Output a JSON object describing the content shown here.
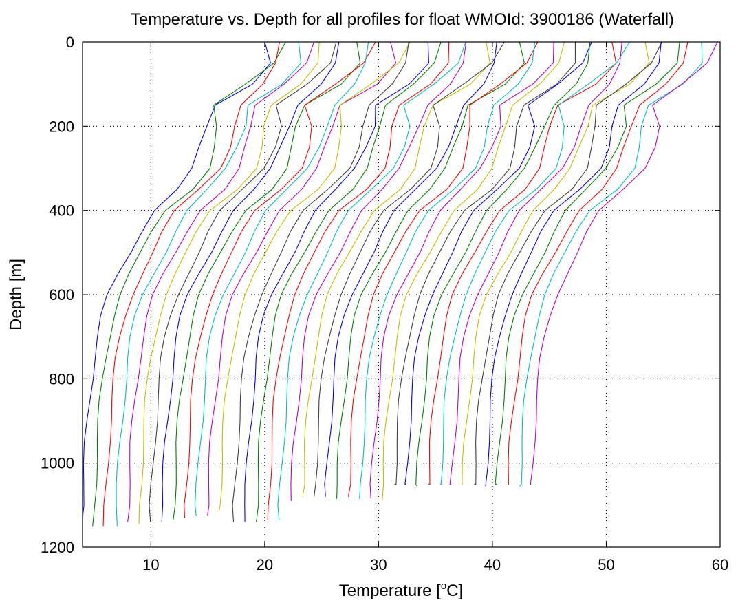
{
  "chart_data": {
    "type": "line",
    "title": "Temperature vs. Depth for all profiles for float WMOId: 3900186 (Waterfall)",
    "xlabel": {
      "prefix": "Temperature [",
      "superscript": "o",
      "suffix": "C]"
    },
    "ylabel": "Depth [m]",
    "xlim": [
      4,
      60
    ],
    "ylim": [
      0,
      1200
    ],
    "y_reversed": true,
    "grid": true,
    "xticks": [
      10,
      20,
      30,
      40,
      50,
      60
    ],
    "yticks": [
      0,
      200,
      400,
      600,
      800,
      1000,
      1200
    ],
    "color_cycle": [
      "#0000ff",
      "#008000",
      "#ff0000",
      "#00bfbf",
      "#bf00bf",
      "#bfbf00",
      "#404040"
    ],
    "depths": [
      0,
      50,
      100,
      150,
      200,
      250,
      300,
      350,
      400,
      450,
      500,
      550,
      600,
      650,
      700,
      750,
      800,
      850,
      900,
      950,
      1000,
      1050,
      1100,
      1150
    ],
    "series_profile": [
      {
        "shift": 0,
        "values": [
          20.0,
          19.7,
          18.0,
          15.4,
          15.1,
          14.6,
          13.9,
          12.3,
          10.2,
          9.1,
          8.2,
          7.2,
          6.3,
          5.7,
          5.3,
          5.0,
          4.8,
          4.6,
          4.45,
          4.3,
          4.2,
          4.1,
          4.0,
          3.95
        ]
      }
    ],
    "series": [
      {
        "offset": 0.0,
        "max_depth": 1145
      },
      {
        "offset": 1.0,
        "max_depth": 1150
      },
      {
        "offset": 2.0,
        "max_depth": 1150
      },
      {
        "offset": 3.0,
        "max_depth": 1150
      },
      {
        "offset": 4.0,
        "max_depth": 1140
      },
      {
        "offset": 5.0,
        "max_depth": 1145
      },
      {
        "offset": 6.0,
        "max_depth": 1140
      },
      {
        "offset": 7.0,
        "max_depth": 1140
      },
      {
        "offset": 8.0,
        "max_depth": 1135
      },
      {
        "offset": 9.0,
        "max_depth": 1130
      },
      {
        "offset": 10.0,
        "max_depth": 1125
      },
      {
        "offset": 11.0,
        "max_depth": 1125
      },
      {
        "offset": 12.0,
        "max_depth": 1115
      },
      {
        "offset": 13.3,
        "max_depth": 1140
      },
      {
        "offset": 14.3,
        "max_depth": 1140
      },
      {
        "offset": 15.3,
        "max_depth": 1140
      },
      {
        "offset": 16.3,
        "max_depth": 1135
      },
      {
        "offset": 17.3,
        "max_depth": 1135
      },
      {
        "offset": 18.3,
        "max_depth": 1090
      },
      {
        "offset": 19.3,
        "max_depth": 1080
      },
      {
        "offset": 20.3,
        "max_depth": 1080
      },
      {
        "offset": 21.3,
        "max_depth": 1080
      },
      {
        "offset": 22.3,
        "max_depth": 1085
      },
      {
        "offset": 23.3,
        "max_depth": 1080
      },
      {
        "offset": 24.3,
        "max_depth": 1085
      },
      {
        "offset": 25.3,
        "max_depth": 1085
      },
      {
        "offset": 26.3,
        "max_depth": 1090
      },
      {
        "offset": 27.3,
        "max_depth": 1050
      },
      {
        "offset": 28.3,
        "max_depth": 1050
      },
      {
        "offset": 29.3,
        "max_depth": 1055
      },
      {
        "offset": 30.3,
        "max_depth": 1050
      },
      {
        "offset": 31.3,
        "max_depth": 1050
      },
      {
        "offset": 32.3,
        "max_depth": 1050
      },
      {
        "offset": 33.3,
        "max_depth": 1050
      },
      {
        "offset": 34.3,
        "max_depth": 1050
      },
      {
        "offset": 35.3,
        "max_depth": 1055
      },
      {
        "offset": 36.3,
        "max_depth": 1050
      },
      {
        "offset": 37.3,
        "max_depth": 1050
      },
      {
        "offset": 38.3,
        "max_depth": 1055
      },
      {
        "offset": 39.3,
        "max_depth": 1050
      }
    ]
  }
}
